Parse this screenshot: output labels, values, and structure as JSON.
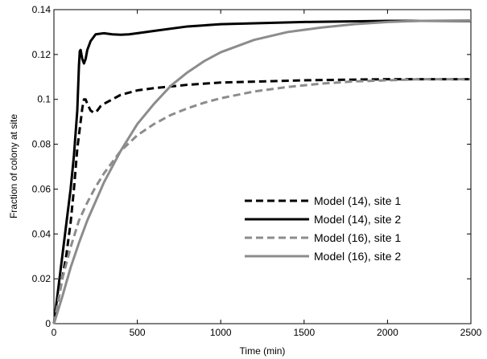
{
  "chart_data": {
    "type": "line",
    "title": "",
    "xlabel": "Time (min)",
    "ylabel": "Fraction of colony at site",
    "xlim": [
      0,
      2500
    ],
    "ylim": [
      0,
      0.14
    ],
    "x_ticks": [
      0,
      500,
      1000,
      1500,
      2000,
      2500
    ],
    "y_ticks": [
      0,
      0.02,
      0.04,
      0.06,
      0.08,
      0.1,
      0.12,
      0.14
    ],
    "x_tick_labels": [
      "0",
      "500",
      "1000",
      "1500",
      "2000",
      "2500"
    ],
    "y_tick_labels": [
      "0",
      "0.02",
      "0.04",
      "0.06",
      "0.08",
      "0.1",
      "0.12",
      "0.14"
    ],
    "grid": false,
    "legend_position": "center-right",
    "series": [
      {
        "name": "Model (14), site 1",
        "color": "#000000",
        "dash": "dashed",
        "points": [
          [
            0,
            0
          ],
          [
            25,
            0.01
          ],
          [
            50,
            0.02
          ],
          [
            75,
            0.031
          ],
          [
            100,
            0.045
          ],
          [
            120,
            0.06
          ],
          [
            140,
            0.078
          ],
          [
            160,
            0.09
          ],
          [
            170,
            0.096
          ],
          [
            180,
            0.1
          ],
          [
            190,
            0.1
          ],
          [
            200,
            0.098
          ],
          [
            220,
            0.095
          ],
          [
            240,
            0.094
          ],
          [
            260,
            0.095
          ],
          [
            280,
            0.097
          ],
          [
            300,
            0.098
          ],
          [
            350,
            0.1
          ],
          [
            400,
            0.102
          ],
          [
            500,
            0.104
          ],
          [
            600,
            0.105
          ],
          [
            800,
            0.1065
          ],
          [
            1000,
            0.1075
          ],
          [
            1500,
            0.1085
          ],
          [
            2000,
            0.109
          ],
          [
            2500,
            0.109
          ]
        ]
      },
      {
        "name": "Model (14), site 2",
        "color": "#000000",
        "dash": "solid",
        "points": [
          [
            0,
            0
          ],
          [
            25,
            0.015
          ],
          [
            50,
            0.03
          ],
          [
            75,
            0.045
          ],
          [
            100,
            0.06
          ],
          [
            120,
            0.075
          ],
          [
            140,
            0.095
          ],
          [
            150,
            0.115
          ],
          [
            155,
            0.1215
          ],
          [
            160,
            0.122
          ],
          [
            170,
            0.118
          ],
          [
            180,
            0.116
          ],
          [
            190,
            0.118
          ],
          [
            200,
            0.122
          ],
          [
            220,
            0.126
          ],
          [
            250,
            0.129
          ],
          [
            300,
            0.1295
          ],
          [
            350,
            0.129
          ],
          [
            400,
            0.1288
          ],
          [
            450,
            0.129
          ],
          [
            500,
            0.1295
          ],
          [
            600,
            0.1305
          ],
          [
            800,
            0.1325
          ],
          [
            1000,
            0.1335
          ],
          [
            1500,
            0.1345
          ],
          [
            2000,
            0.135
          ],
          [
            2500,
            0.135
          ]
        ]
      },
      {
        "name": "Model (16), site 1",
        "color": "#8c8c8c",
        "dash": "dashed",
        "points": [
          [
            0,
            0
          ],
          [
            50,
            0.02
          ],
          [
            100,
            0.034
          ],
          [
            150,
            0.046
          ],
          [
            200,
            0.054
          ],
          [
            250,
            0.061
          ],
          [
            300,
            0.067
          ],
          [
            400,
            0.077
          ],
          [
            500,
            0.084
          ],
          [
            600,
            0.089
          ],
          [
            700,
            0.093
          ],
          [
            800,
            0.096
          ],
          [
            900,
            0.0985
          ],
          [
            1000,
            0.1005
          ],
          [
            1200,
            0.1035
          ],
          [
            1400,
            0.1055
          ],
          [
            1600,
            0.107
          ],
          [
            1800,
            0.108
          ],
          [
            2000,
            0.1085
          ],
          [
            2200,
            0.109
          ],
          [
            2500,
            0.109
          ]
        ]
      },
      {
        "name": "Model (16), site 2",
        "color": "#8c8c8c",
        "dash": "solid",
        "points": [
          [
            0,
            0
          ],
          [
            50,
            0.012
          ],
          [
            100,
            0.025
          ],
          [
            150,
            0.036
          ],
          [
            200,
            0.046
          ],
          [
            300,
            0.063
          ],
          [
            400,
            0.077
          ],
          [
            500,
            0.089
          ],
          [
            600,
            0.098
          ],
          [
            700,
            0.106
          ],
          [
            800,
            0.112
          ],
          [
            900,
            0.117
          ],
          [
            1000,
            0.121
          ],
          [
            1200,
            0.1265
          ],
          [
            1400,
            0.13
          ],
          [
            1600,
            0.132
          ],
          [
            1800,
            0.1335
          ],
          [
            2000,
            0.1345
          ],
          [
            2200,
            0.135
          ],
          [
            2500,
            0.1352
          ]
        ]
      }
    ]
  }
}
